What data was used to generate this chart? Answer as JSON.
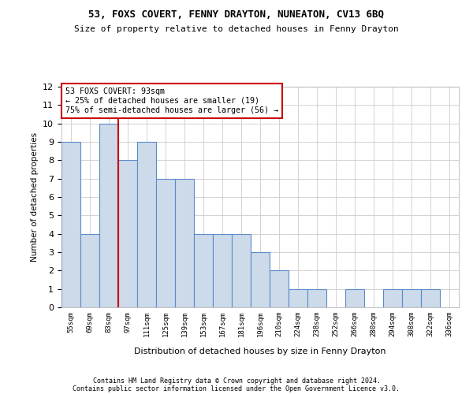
{
  "title1": "53, FOXS COVERT, FENNY DRAYTON, NUNEATON, CV13 6BQ",
  "title2": "Size of property relative to detached houses in Fenny Drayton",
  "xlabel": "Distribution of detached houses by size in Fenny Drayton",
  "ylabel": "Number of detached properties",
  "footer1": "Contains HM Land Registry data © Crown copyright and database right 2024.",
  "footer2": "Contains public sector information licensed under the Open Government Licence v3.0.",
  "annotation_line1": "53 FOXS COVERT: 93sqm",
  "annotation_line2": "← 25% of detached houses are smaller (19)",
  "annotation_line3": "75% of semi-detached houses are larger (56) →",
  "categories": [
    "55sqm",
    "69sqm",
    "83sqm",
    "97sqm",
    "111sqm",
    "125sqm",
    "139sqm",
    "153sqm",
    "167sqm",
    "181sqm",
    "196sqm",
    "210sqm",
    "224sqm",
    "238sqm",
    "252sqm",
    "266sqm",
    "280sqm",
    "294sqm",
    "308sqm",
    "322sqm",
    "336sqm"
  ],
  "values": [
    9,
    4,
    10,
    8,
    9,
    7,
    7,
    4,
    4,
    4,
    3,
    2,
    1,
    1,
    0,
    1,
    0,
    1,
    1,
    1,
    0
  ],
  "bar_color": "#ccdaea",
  "bar_edge_color": "#5b8cc8",
  "vline_color": "#cc0000",
  "vline_x": 2.5,
  "ylim_max": 12,
  "annotation_box_color": "#cc0000",
  "background_color": "#ffffff",
  "grid_color": "#cccccc"
}
